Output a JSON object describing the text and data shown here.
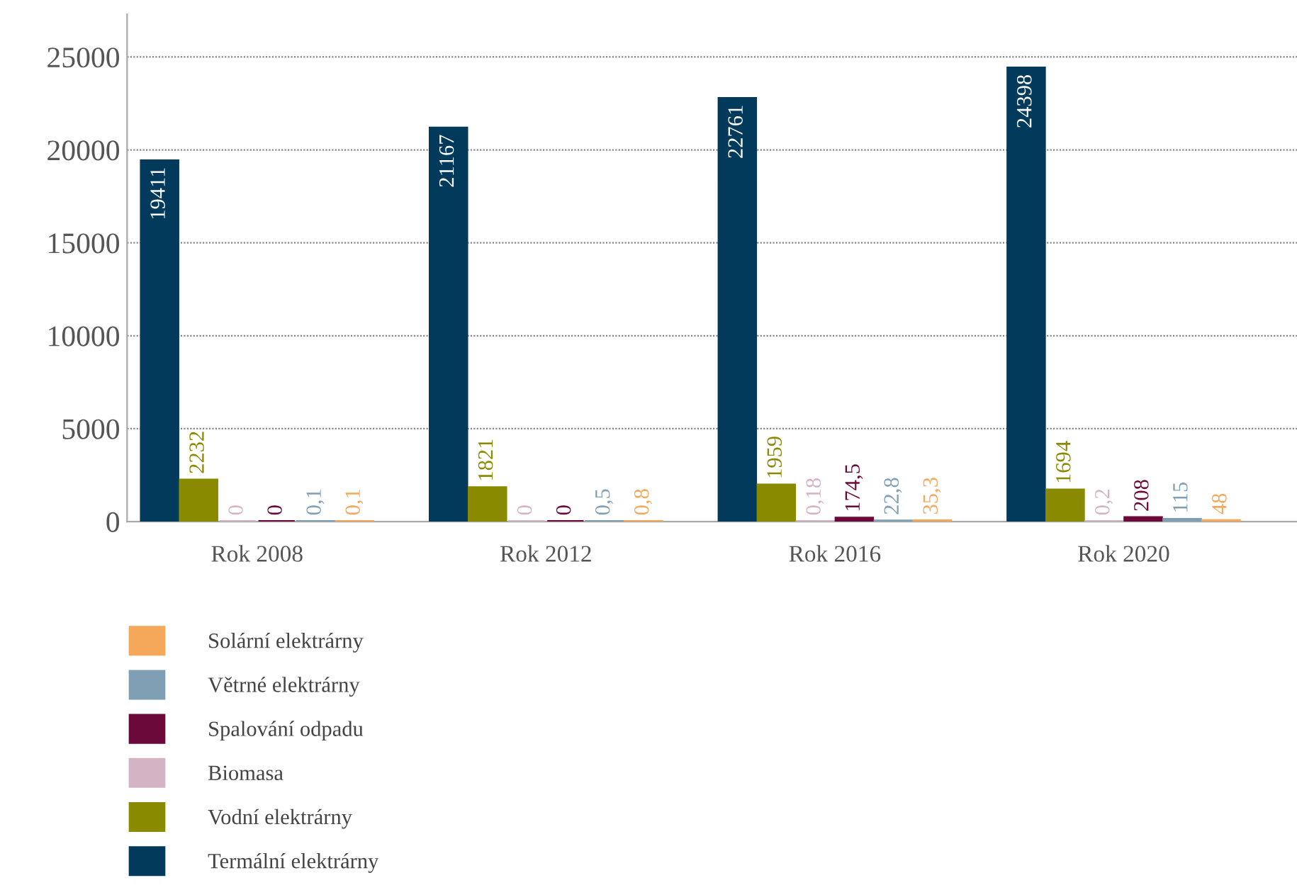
{
  "chart_data": {
    "type": "bar",
    "categories": [
      "Rok 2008",
      "Rok 2012",
      "Rok 2016",
      "Rok 2020"
    ],
    "series": [
      {
        "name": "Termální elektrárny",
        "color": "#023a5c",
        "values": [
          19411,
          21167,
          22761,
          24398
        ],
        "value_labels": [
          "19411",
          "21167",
          "22761",
          "24398"
        ]
      },
      {
        "name": "Vodní elektrárny",
        "color": "#8a8a00",
        "values": [
          2232,
          1821,
          1959,
          1694
        ],
        "value_labels": [
          "2232",
          "1821",
          "1959",
          "1694"
        ]
      },
      {
        "name": "Biomasa",
        "color": "#d4b3c5",
        "values": [
          0,
          0,
          0.18,
          0.2
        ],
        "value_labels": [
          "0",
          "0",
          "0,18",
          "0,2"
        ]
      },
      {
        "name": "Spalování odpadu",
        "color": "#6b0a3a",
        "values": [
          0,
          0,
          174.5,
          208
        ],
        "value_labels": [
          "0",
          "0",
          "174,5",
          "208"
        ]
      },
      {
        "name": "Větrné elektrárny",
        "color": "#7f9fb5",
        "values": [
          0.1,
          0.5,
          22.8,
          115
        ],
        "value_labels": [
          "0,1",
          "0,5",
          "22,8",
          "115"
        ]
      },
      {
        "name": "Solární elektrárny",
        "color": "#f5a75a",
        "values": [
          0.1,
          0.8,
          35.3,
          48
        ],
        "value_labels": [
          "0,1",
          "0,8",
          "35,3",
          "48"
        ]
      }
    ],
    "ylim": [
      0,
      27300
    ],
    "yticks": [
      0,
      5000,
      10000,
      15000,
      20000,
      25000
    ],
    "grid": "y",
    "legend": "bottom left"
  }
}
